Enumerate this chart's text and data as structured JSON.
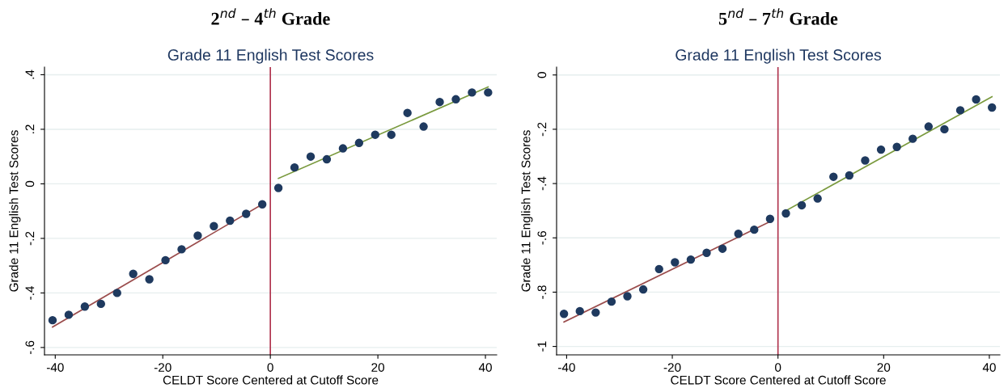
{
  "chart_data": [
    {
      "type": "scatter",
      "title": "2$^{nd}$ – 4$^{th}$ Grade",
      "subtitle": "Grade 11 English Test Scores",
      "xlabel": "CELDT Score Centered at Cutoff Score",
      "ylabel": "Grade 11 English Test Scores",
      "x": [
        -40.5,
        -37.5,
        -34.5,
        -31.5,
        -28.5,
        -25.5,
        -22.5,
        -19.5,
        -16.5,
        -13.5,
        -10.5,
        -7.5,
        -4.5,
        -1.5,
        1.5,
        4.5,
        7.5,
        10.5,
        13.5,
        16.5,
        19.5,
        22.5,
        25.5,
        28.5,
        31.5,
        34.5,
        37.5,
        40.5
      ],
      "series": [
        {
          "color": "#1f3a5f",
          "marker": "circle",
          "values": [
            -0.5,
            -0.48,
            -0.45,
            -0.44,
            -0.4,
            -0.33,
            -0.35,
            -0.28,
            -0.24,
            -0.19,
            -0.155,
            -0.135,
            -0.11,
            -0.075,
            -0.015,
            0.06,
            0.1,
            0.09,
            0.13,
            0.15,
            0.18,
            0.18,
            0.26,
            0.21,
            0.3,
            0.31,
            0.335,
            0.335
          ]
        },
        {
          "type": "line",
          "color": "#9b4d4d",
          "marker": "none",
          "x": [
            -40.5,
            -1.5
          ],
          "values": [
            -0.525,
            -0.075
          ]
        },
        {
          "type": "line",
          "color": "#7a9a3e",
          "marker": "none",
          "x": [
            1.5,
            40.5
          ],
          "values": [
            0.02,
            0.355
          ]
        }
      ],
      "ref_lines": [
        {
          "axis": "x",
          "value": 0,
          "color": "#b0344e"
        }
      ],
      "xlim": [
        -42,
        42.1
      ],
      "xticks": [
        -40,
        -20,
        0,
        20,
        40
      ],
      "ylim": [
        -0.627,
        0.428
      ],
      "yticks": [
        {
          "value": -0.6,
          "label": "-.6"
        },
        {
          "value": -0.4,
          "label": "-.4"
        },
        {
          "value": -0.2,
          "label": "-.2"
        },
        0,
        {
          "value": 0.2,
          "label": ".2"
        },
        {
          "value": 0.4,
          "label": ".4"
        }
      ],
      "grid": "y",
      "legend": false
    },
    {
      "type": "scatter",
      "title": "5$^{nd}$ – 7$^{th}$ Grade",
      "subtitle": "Grade 11 English Test Scores",
      "xlabel": "CELDT Score Centered at Cutoff Score",
      "ylabel": "Grade 11 English Test Scores",
      "x": [
        -40.5,
        -37.5,
        -34.5,
        -31.5,
        -28.5,
        -25.5,
        -22.5,
        -19.5,
        -16.5,
        -13.5,
        -10.5,
        -7.5,
        -4.5,
        -1.5,
        1.5,
        4.5,
        7.5,
        10.5,
        13.5,
        16.5,
        19.5,
        22.5,
        25.5,
        28.5,
        31.5,
        34.5,
        37.5,
        40.5
      ],
      "series": [
        {
          "color": "#1f3a5f",
          "marker": "circle",
          "values": [
            -0.88,
            -0.87,
            -0.875,
            -0.835,
            -0.815,
            -0.79,
            -0.715,
            -0.69,
            -0.68,
            -0.655,
            -0.64,
            -0.585,
            -0.57,
            -0.53,
            -0.51,
            -0.48,
            -0.455,
            -0.375,
            -0.37,
            -0.315,
            -0.275,
            -0.265,
            -0.235,
            -0.19,
            -0.2,
            -0.13,
            -0.09,
            -0.12
          ]
        },
        {
          "type": "line",
          "color": "#9b4d4d",
          "marker": "none",
          "x": [
            -40.5,
            -1.5
          ],
          "values": [
            -0.91,
            -0.54
          ]
        },
        {
          "type": "line",
          "color": "#7a9a3e",
          "marker": "none",
          "x": [
            1.5,
            40.5
          ],
          "values": [
            -0.5,
            -0.08
          ]
        }
      ],
      "ref_lines": [
        {
          "axis": "x",
          "value": 0,
          "color": "#b0344e"
        }
      ],
      "xlim": [
        -41.9,
        42
      ],
      "xticks": [
        -40,
        -20,
        0,
        20,
        40
      ],
      "ylim": [
        -1.031,
        0.029
      ],
      "yticks": [
        {
          "value": -1,
          "label": "-1"
        },
        {
          "value": -0.8,
          "label": "-.8"
        },
        {
          "value": -0.6,
          "label": "-.6"
        },
        {
          "value": -0.4,
          "label": "-.4"
        },
        {
          "value": -0.2,
          "label": "-.2"
        },
        0
      ],
      "grid": "y",
      "legend": false
    }
  ]
}
